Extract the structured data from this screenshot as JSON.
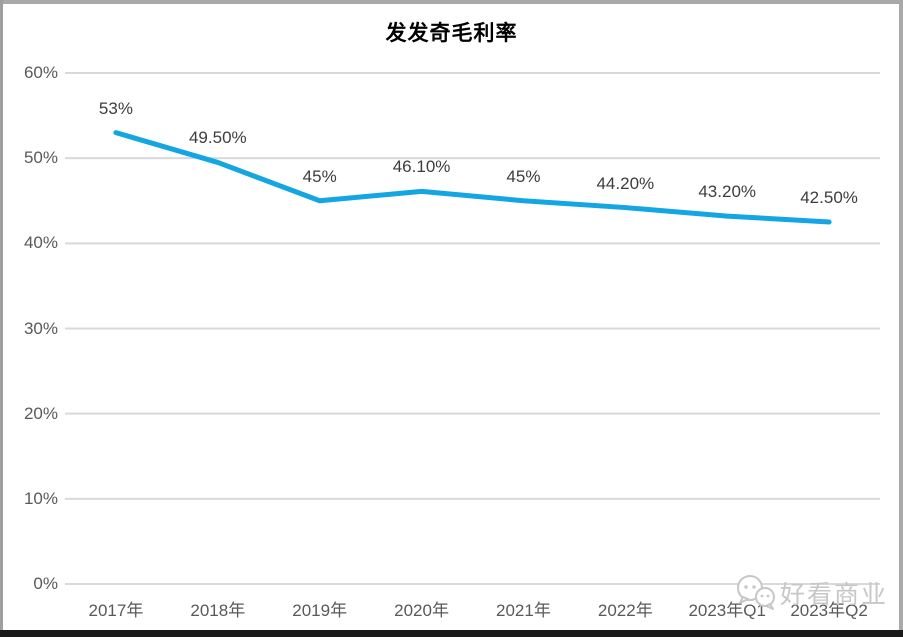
{
  "chart": {
    "title": "发发奇毛利率"
  },
  "watermark": {
    "text": "好看商业",
    "icon": "chat-bubbles-icon"
  },
  "colors": {
    "line": "#14a5e3",
    "gridline": "#d9d9d9",
    "axis_label": "#595959",
    "data_label": "#3d3d3d",
    "title": "#000000",
    "frame_border": "#a9a9a9",
    "bottom_bar": "#1a1a1a",
    "watermark": "#c7c7c7"
  },
  "chart_data": {
    "type": "line",
    "title": "发发奇毛利率",
    "categories": [
      "2017年",
      "2018年",
      "2019年",
      "2020年",
      "2021年",
      "2022年",
      "2023年Q1",
      "2023年Q2"
    ],
    "values": [
      53,
      49.5,
      45,
      46.1,
      45,
      44.2,
      43.2,
      42.5
    ],
    "data_labels": [
      "53%",
      "49.50%",
      "45%",
      "46.10%",
      "45%",
      "44.20%",
      "43.20%",
      "42.50%"
    ],
    "xlabel": "",
    "ylabel": "",
    "ylim": [
      0,
      60
    ],
    "ytick_step": 10,
    "ytick_labels": [
      "0%",
      "10%",
      "20%",
      "30%",
      "40%",
      "50%",
      "60%"
    ],
    "grid": true,
    "legend": false,
    "line_color": "#14a5e3",
    "marker": "none"
  }
}
